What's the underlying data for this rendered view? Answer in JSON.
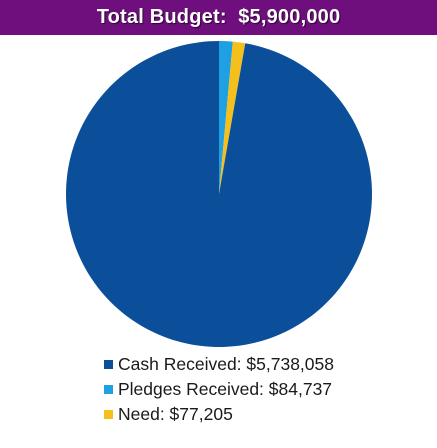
{
  "header": {
    "title": "Total Budget:  $5,900,000"
  },
  "colors": {
    "title_background": "#6f0f7d",
    "cash": "#0b4f9a",
    "pledges": "#1fa0e3",
    "need": "#f6c01c"
  },
  "chart_data": {
    "type": "pie",
    "title": "Total Budget:  $5,900,000",
    "series": [
      {
        "name": "Cash Received: $5,738,058",
        "value": 5738058,
        "color": "#0b4f9a"
      },
      {
        "name": "Pledges Received: $84,737",
        "value": 84737,
        "color": "#1fa0e3"
      },
      {
        "name": "Need: $77,205",
        "value": 77205,
        "color": "#f6c01c"
      }
    ],
    "legend_position": "bottom"
  }
}
